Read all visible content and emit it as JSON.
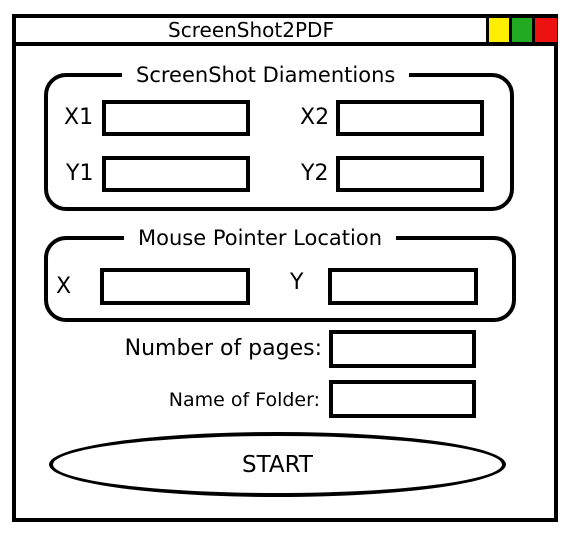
{
  "window": {
    "title": "ScreenShot2PDF",
    "controls": [
      "minimize",
      "maximize",
      "close"
    ],
    "control_colors": {
      "minimize": "#ffee00",
      "maximize": "#22aa22",
      "close": "#ee1111"
    }
  },
  "screenshot_dimensions": {
    "legend": "ScreenShot Diamentions",
    "x1_label": "X1",
    "x2_label": "X2",
    "y1_label": "Y1",
    "y2_label": "Y2",
    "x1_value": "",
    "x2_value": "",
    "y1_value": "",
    "y2_value": ""
  },
  "mouse_pointer": {
    "legend": "Mouse Pointer Location",
    "x_label": "X",
    "y_label": "Y",
    "x_value": "",
    "y_value": ""
  },
  "settings": {
    "pages_label": "Number of pages:",
    "pages_value": "",
    "folder_label": "Name of Folder:",
    "folder_value": ""
  },
  "start_button": {
    "label": "START"
  }
}
